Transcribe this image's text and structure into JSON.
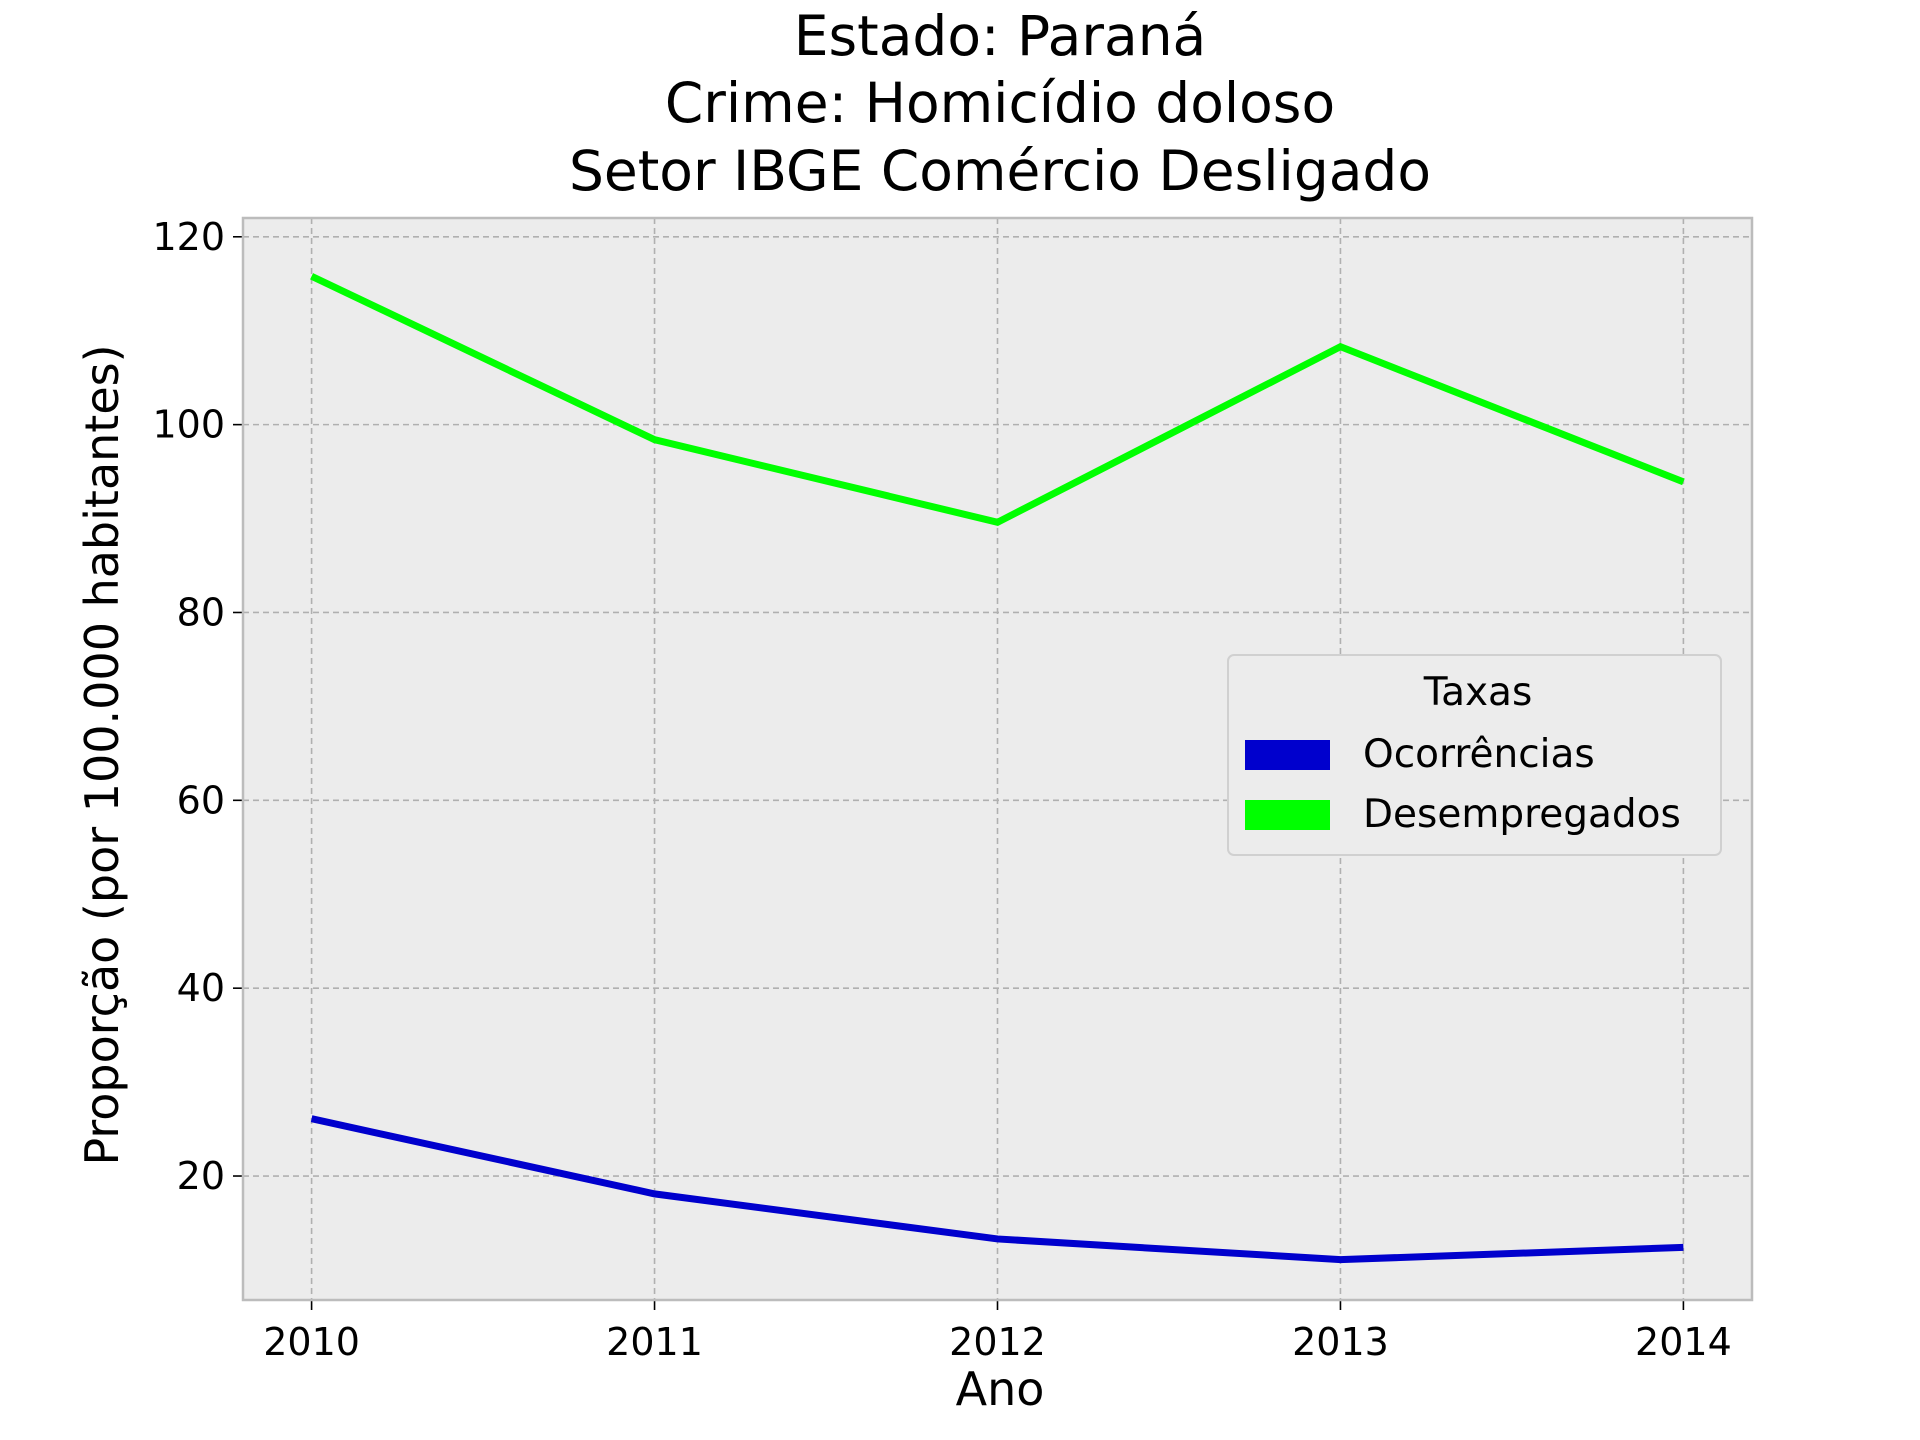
{
  "chart_data": {
    "type": "line",
    "title_lines": [
      "Estado: Paraná",
      "Crime: Homicídio doloso",
      "Setor IBGE  Comércio   Desligado"
    ],
    "xlabel": "Ano",
    "ylabel": "Proporção (por 100.000 habitantes)",
    "x": [
      2010,
      2011,
      2012,
      2013,
      2014
    ],
    "x_tick_labels": [
      "2010",
      "2011",
      "2012",
      "2013",
      "2014"
    ],
    "y_ticks": [
      20,
      40,
      60,
      80,
      100,
      120
    ],
    "y_tick_labels": [
      "20",
      "40",
      "60",
      "80",
      "100",
      "120"
    ],
    "xlim": [
      2009.8,
      2014.2
    ],
    "ylim": [
      6.8,
      122
    ],
    "grid": true,
    "legend": {
      "title": "Taxas",
      "placement": "center-right"
    },
    "series": [
      {
        "name": "Ocorrências",
        "color": "#0000cd",
        "values": [
          26.1,
          18.1,
          13.3,
          11.1,
          12.4
        ]
      },
      {
        "name": "Desempregados",
        "color": "#00ff00",
        "values": [
          115.8,
          98.4,
          89.6,
          108.3,
          93.9
        ]
      }
    ],
    "background_color": "#ececec",
    "grid_color": "#b0b0b0"
  }
}
